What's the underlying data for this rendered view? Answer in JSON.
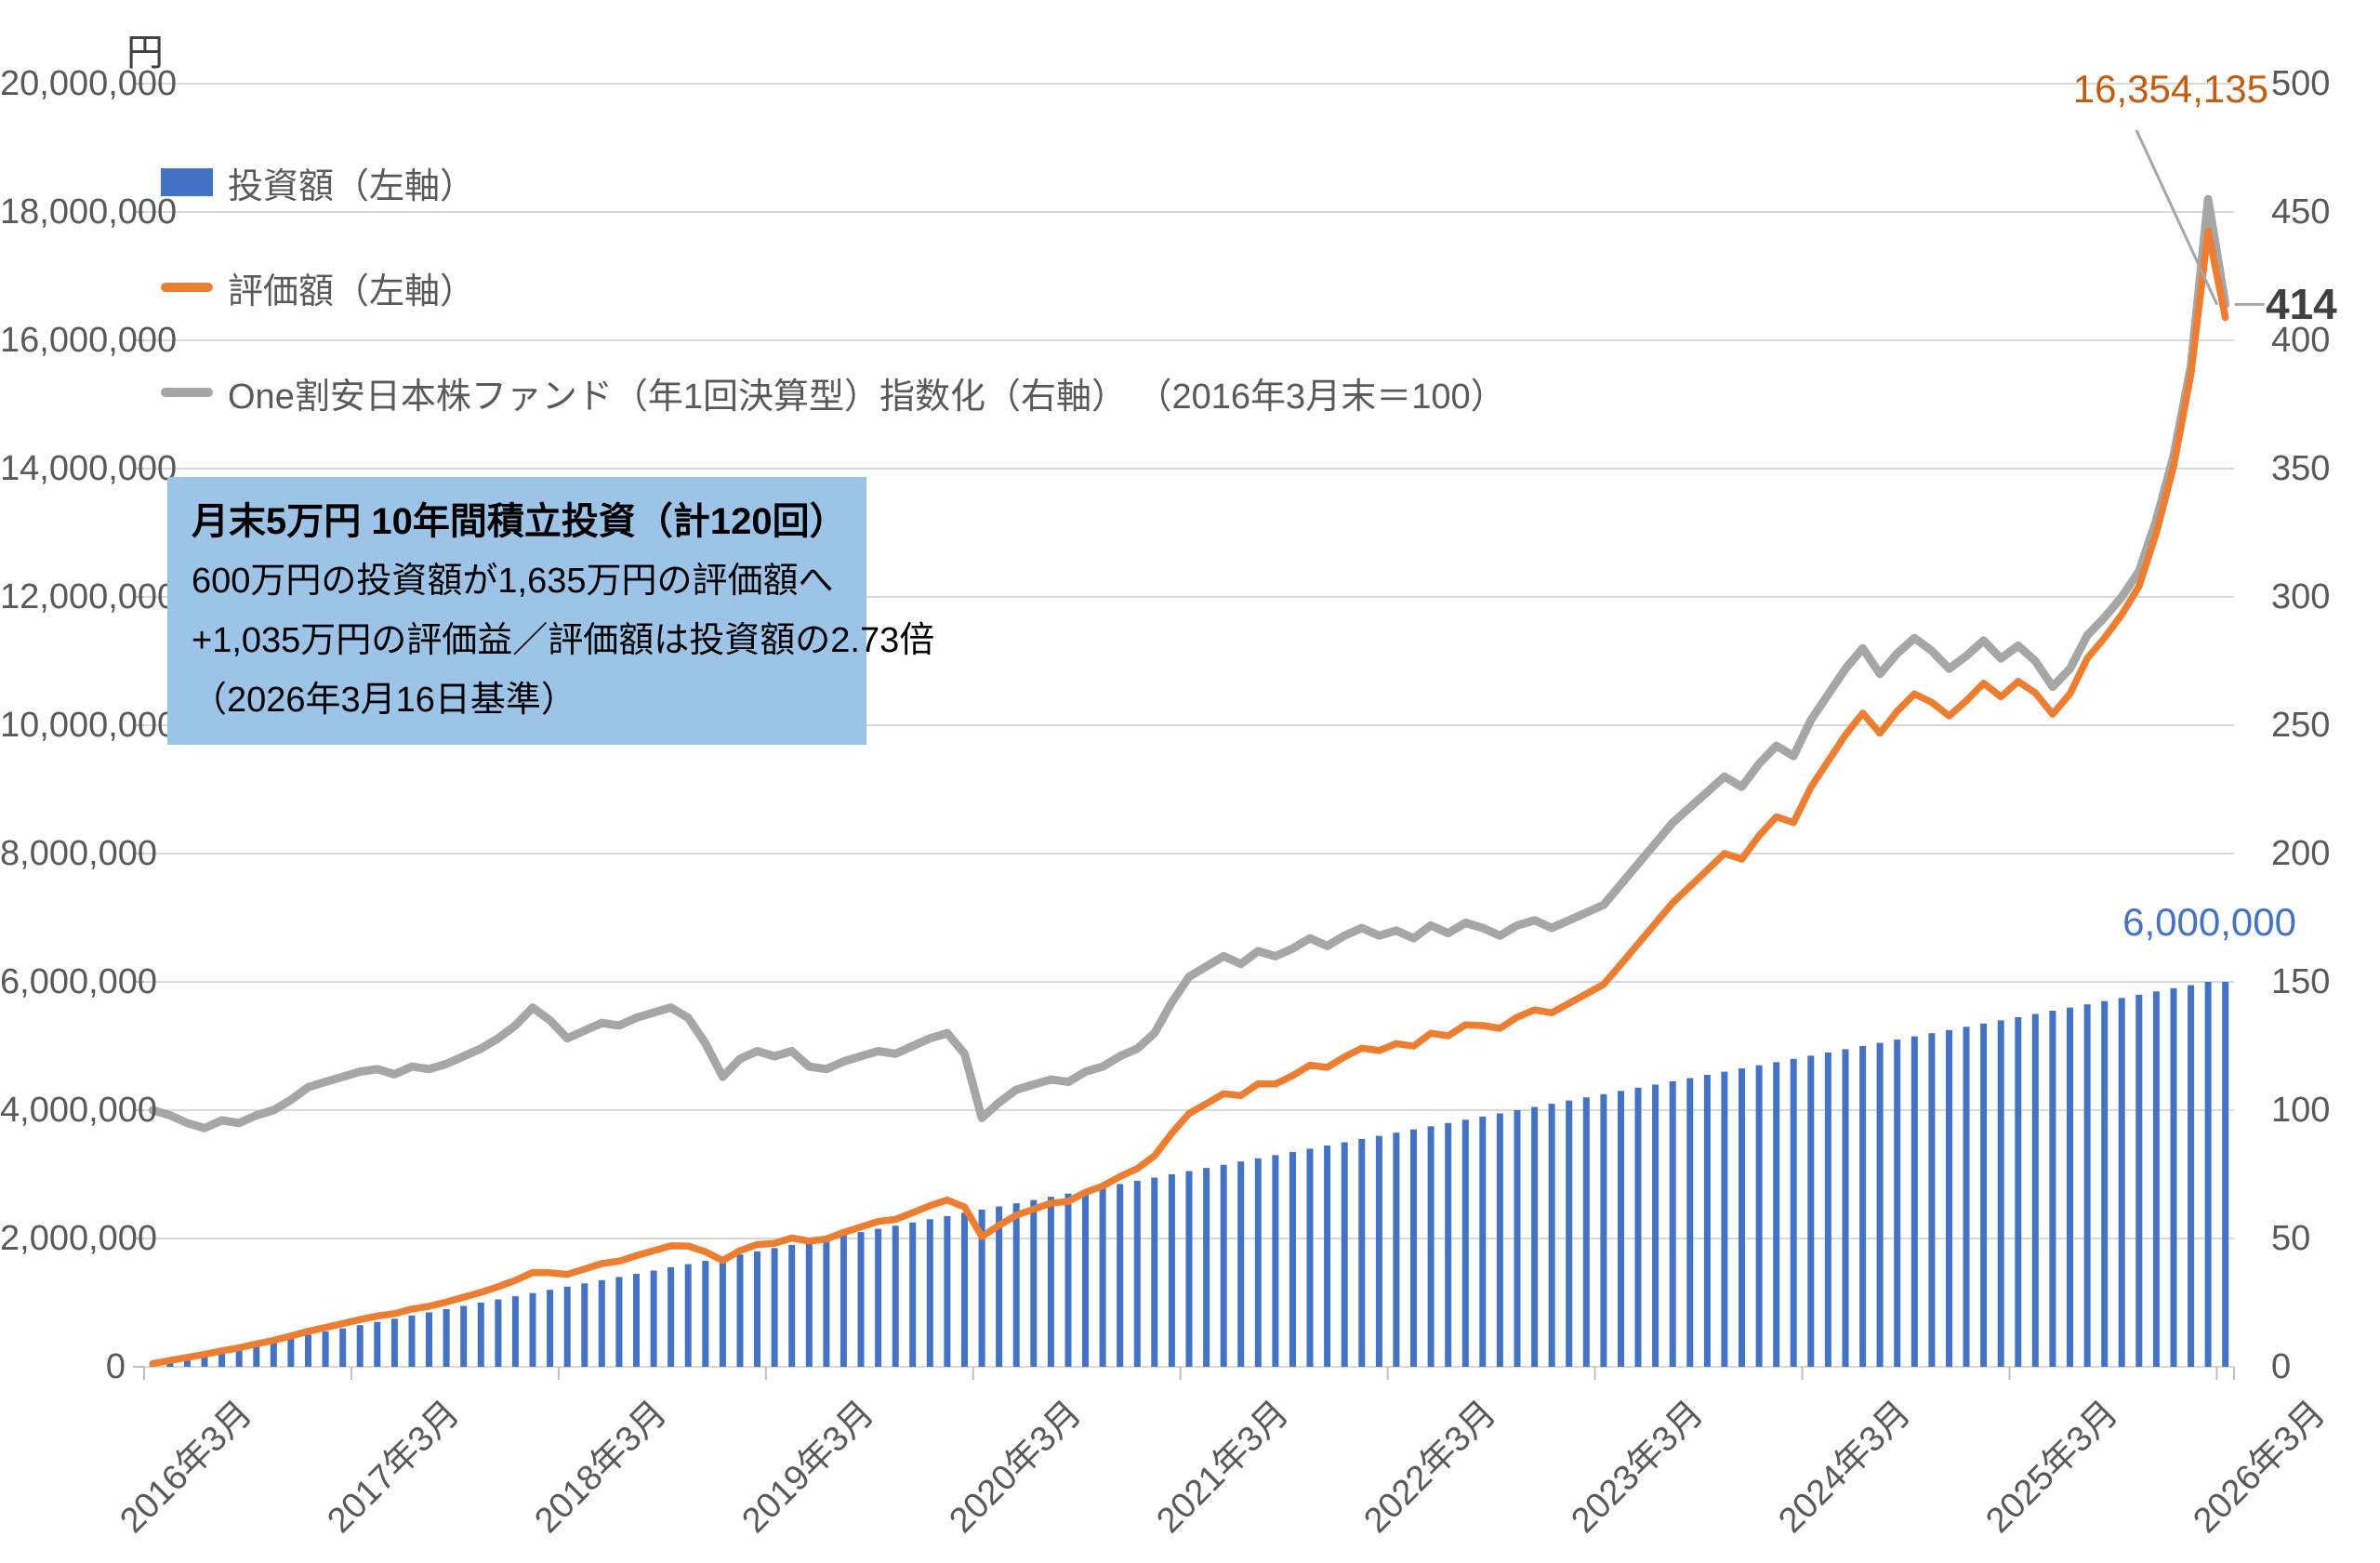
{
  "annotations": {
    "valuation_final": {
      "text": "16,354,135",
      "color": "#C55A11"
    },
    "index_final": {
      "text": "414",
      "color": "#404040"
    },
    "investment_final": {
      "text": "6,000,000",
      "color": "#4472C4"
    }
  },
  "callout_box": {
    "bg_color": "#9DC3E6",
    "title": "月末5万円 10年間積立投資（計120回）",
    "line2": "600万円の投資額が1,635万円の評価額へ",
    "line3": "+1,035万円の評価益／評価額は投資額の2.73倍",
    "line4": "（2026年3月16日基準）"
  },
  "legend": [
    {
      "label": "投資額（左軸）",
      "swatch": "bar",
      "color": "#4472C4"
    },
    {
      "label": "評価額（左軸）",
      "swatch": "line",
      "color": "#ED7D31"
    },
    {
      "label": "One割安日本株ファンド（年1回決算型）指数化（右軸） （2016年3月末＝100）",
      "swatch": "line",
      "color": "#A6A6A6"
    }
  ],
  "chart_data": {
    "type": "bar+line combo",
    "n_points": 121,
    "x_start": "2016年3月",
    "x_end": "2026年3月",
    "x_tick_labels": [
      "2016年3月",
      "2017年3月",
      "2018年3月",
      "2019年3月",
      "2020年3月",
      "2021年3月",
      "2022年3月",
      "2023年3月",
      "2024年3月",
      "2025年3月",
      "2026年3月"
    ],
    "left_axis": {
      "unit": "円",
      "min": 0,
      "max": 20000000,
      "step": 2000000
    },
    "right_axis": {
      "min": 0,
      "max": 500,
      "step": 50
    },
    "grid": true,
    "gridline_color": "#D9D9D9",
    "tick_color": "#BFBFBF",
    "legend_position": "top-left-inside",
    "series": [
      {
        "name": "投資額（左軸）",
        "type": "bar",
        "axis": "left",
        "color": "#4472C4",
        "values": [
          50000,
          100000,
          150000,
          200000,
          250000,
          300000,
          350000,
          400000,
          450000,
          500000,
          550000,
          600000,
          650000,
          700000,
          750000,
          800000,
          850000,
          900000,
          950000,
          1000000,
          1050000,
          1100000,
          1150000,
          1200000,
          1250000,
          1300000,
          1350000,
          1400000,
          1450000,
          1500000,
          1550000,
          1600000,
          1650000,
          1700000,
          1750000,
          1800000,
          1850000,
          1900000,
          1950000,
          2000000,
          2050000,
          2100000,
          2150000,
          2200000,
          2250000,
          2300000,
          2350000,
          2400000,
          2450000,
          2500000,
          2550000,
          2600000,
          2650000,
          2700000,
          2750000,
          2800000,
          2850000,
          2900000,
          2950000,
          3000000,
          3050000,
          3100000,
          3150000,
          3200000,
          3250000,
          3300000,
          3350000,
          3400000,
          3450000,
          3500000,
          3550000,
          3600000,
          3650000,
          3700000,
          3750000,
          3800000,
          3850000,
          3900000,
          3950000,
          4000000,
          4050000,
          4100000,
          4150000,
          4200000,
          4250000,
          4300000,
          4350000,
          4400000,
          4450000,
          4500000,
          4550000,
          4600000,
          4650000,
          4700000,
          4750000,
          4800000,
          4850000,
          4900000,
          4950000,
          5000000,
          5050000,
          5100000,
          5150000,
          5200000,
          5250000,
          5300000,
          5350000,
          5400000,
          5450000,
          5500000,
          5550000,
          5600000,
          5650000,
          5700000,
          5750000,
          5800000,
          5850000,
          5900000,
          5950000,
          6000000,
          6000000
        ]
      },
      {
        "name": "評価額（左軸）",
        "type": "line",
        "axis": "left",
        "color": "#ED7D31",
        "values": [
          50000,
          99000,
          146000,
          193000,
          249000,
          297000,
          356000,
          413000,
          480000,
          553000,
          613000,
          674000,
          736000,
          792000,
          829000,
          900000,
          943000,
          1009000,
          1085000,
          1161000,
          1249000,
          1348000,
          1469000,
          1466000,
          1440000,
          1524000,
          1609000,
          1647000,
          1734000,
          1809000,
          1886000,
          1882000,
          1793000,
          1658000,
          1811000,
          1906000,
          1925000,
          2007000,
          1959000,
          1992000,
          2094000,
          2179000,
          2265000,
          2297000,
          2403000,
          2511000,
          2600000,
          2490000,
          2030000,
          2205000,
          2363000,
          2456000,
          2551000,
          2578000,
          2721000,
          2818000,
          2965000,
          3088000,
          3288000,
          3641000,
          3948000,
          4101000,
          4257000,
          4227000,
          4411000,
          4407000,
          4539000,
          4701000,
          4666000,
          4830000,
          4967000,
          4929000,
          5038000,
          4999000,
          5199000,
          5158000,
          5330000,
          5319000,
          5275000,
          5451000,
          5564000,
          5518000,
          5665000,
          5813000,
          5961000,
          6276000,
          6593000,
          6913000,
          7234000,
          7488000,
          7744000,
          8002000,
          7913000,
          8278000,
          8574000,
          8483000,
          9032000,
          9440000,
          9850000,
          10190000,
          9876000,
          10219000,
          10489000,
          10355000,
          10145000,
          10381000,
          10656000,
          10443000,
          10682000,
          10504000,
          10172000,
          10490000,
          11042000,
          11363000,
          11724000,
          12165000,
          13000000,
          14035000,
          15469000,
          17700000,
          16354135
        ]
      },
      {
        "name": "One割安日本株ファンド（年1回決算型）指数化（右軸） （2016年3月末＝100）",
        "type": "line",
        "axis": "right",
        "color": "#A6A6A6",
        "values": [
          100,
          98,
          95,
          93,
          96,
          95,
          98,
          100,
          104,
          109,
          111,
          113,
          115,
          116,
          114,
          117,
          116,
          118,
          121,
          124,
          128,
          133,
          140,
          135,
          128,
          131,
          134,
          133,
          136,
          138,
          140,
          136,
          126,
          113,
          120,
          123,
          121,
          123,
          117,
          116,
          119,
          121,
          123,
          122,
          125,
          128,
          130,
          122,
          97,
          103,
          108,
          110,
          112,
          111,
          115,
          117,
          121,
          124,
          130,
          142,
          152,
          156,
          160,
          157,
          162,
          160,
          163,
          167,
          164,
          168,
          171,
          168,
          170,
          167,
          172,
          169,
          173,
          171,
          168,
          172,
          174,
          171,
          174,
          177,
          180,
          188,
          196,
          204,
          212,
          218,
          224,
          230,
          226,
          235,
          242,
          238,
          252,
          262,
          272,
          280,
          270,
          278,
          284,
          279,
          272,
          277,
          283,
          276,
          281,
          275,
          265,
          272,
          285,
          292,
          300,
          310,
          330,
          355,
          390,
          455,
          414
        ]
      }
    ]
  }
}
